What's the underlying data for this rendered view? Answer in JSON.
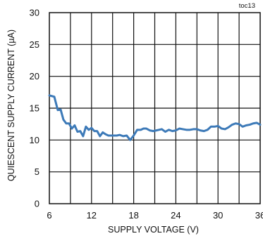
{
  "chart_data": {
    "type": "line",
    "annotation": "toc13",
    "xlabel": "SUPPLY VOLTAGE (V)",
    "ylabel": "QUIESCENT SUPPLY CURRENT (µA)",
    "xlim": [
      6,
      36
    ],
    "ylim": [
      0,
      30
    ],
    "xticks": [
      6,
      12,
      18,
      24,
      30,
      36
    ],
    "yticks": [
      0,
      5,
      10,
      15,
      20,
      25,
      30
    ],
    "xgrid_step": 3,
    "grid": true,
    "legend": "none",
    "series": [
      {
        "color": "#3d7ab8",
        "x": [
          6.0,
          6.7,
          7.2,
          7.6,
          8.0,
          8.4,
          8.8,
          9.2,
          9.6,
          10.0,
          10.4,
          10.8,
          11.2,
          11.6,
          12.0,
          12.4,
          12.8,
          13.2,
          13.6,
          14.0,
          14.4,
          14.8,
          15.2,
          15.6,
          16.0,
          16.5,
          17.0,
          17.5,
          18.0,
          18.5,
          19.0,
          19.4,
          19.8,
          20.3,
          20.8,
          21.2,
          21.6,
          22.0,
          22.5,
          23.0,
          23.5,
          24.0,
          24.5,
          25.0,
          25.5,
          26.0,
          26.5,
          27.0,
          27.5,
          28.0,
          28.5,
          29.0,
          29.5,
          30.0,
          30.5,
          31.0,
          31.5,
          32.0,
          32.5,
          33.0,
          33.5,
          34.0,
          34.5,
          35.0,
          35.5,
          36.0
        ],
        "y": [
          17.0,
          16.8,
          14.7,
          14.8,
          13.2,
          12.6,
          12.6,
          11.8,
          12.3,
          11.3,
          11.4,
          10.6,
          12.1,
          11.6,
          11.9,
          11.4,
          11.4,
          10.6,
          11.2,
          10.9,
          10.7,
          10.7,
          10.7,
          10.7,
          10.8,
          10.6,
          10.7,
          10.0,
          10.7,
          11.6,
          11.6,
          11.8,
          11.8,
          11.5,
          11.4,
          11.5,
          11.6,
          11.7,
          11.3,
          11.6,
          11.4,
          11.5,
          11.8,
          11.7,
          11.6,
          11.6,
          11.7,
          11.7,
          11.5,
          11.4,
          11.6,
          12.1,
          12.1,
          12.2,
          11.8,
          11.7,
          12.0,
          12.4,
          12.6,
          12.5,
          12.1,
          12.3,
          12.4,
          12.6,
          12.7,
          12.4
        ]
      }
    ]
  }
}
